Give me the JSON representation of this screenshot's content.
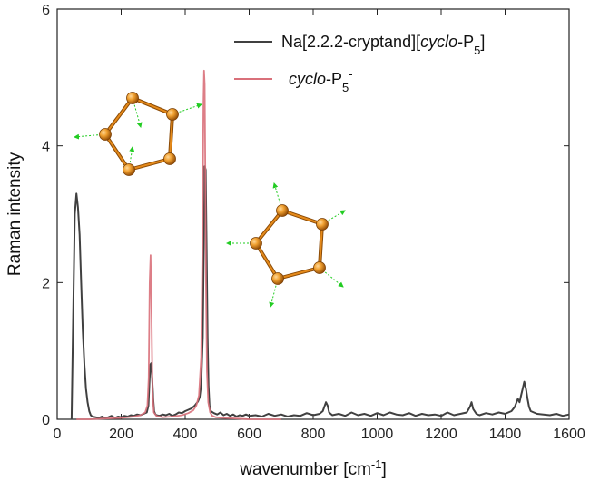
{
  "chart_data": {
    "type": "line",
    "xlabel_main": "wavenumber [cm",
    "xlabel_sup": "-1",
    "xlabel_end": "]",
    "ylabel": "Raman intensity",
    "xlim": [
      0,
      1600
    ],
    "ylim": [
      0,
      6
    ],
    "x_ticks": [
      0,
      200,
      400,
      600,
      800,
      1000,
      1200,
      1400,
      1600
    ],
    "y_ticks": [
      0,
      2,
      4,
      6
    ],
    "grid": false,
    "legend_position": "top-right",
    "series": [
      {
        "name_parts": {
          "a": "Na[2.2.2-cryptand][",
          "b": "cyclo",
          "c": "-P",
          "d": "5",
          "e": "]"
        },
        "color": "#404040",
        "x": [
          45,
          50,
          55,
          60,
          65,
          70,
          75,
          80,
          85,
          90,
          95,
          100,
          105,
          110,
          120,
          130,
          140,
          150,
          160,
          170,
          180,
          190,
          200,
          210,
          220,
          230,
          240,
          250,
          260,
          270,
          280,
          285,
          288,
          291,
          294,
          297,
          300,
          303,
          306,
          310,
          320,
          330,
          340,
          350,
          360,
          370,
          380,
          390,
          400,
          410,
          420,
          430,
          440,
          445,
          450,
          455,
          458,
          461,
          464,
          467,
          470,
          473,
          476,
          480,
          490,
          500,
          510,
          520,
          530,
          540,
          550,
          560,
          570,
          580,
          590,
          600,
          620,
          640,
          660,
          680,
          700,
          720,
          740,
          760,
          780,
          800,
          820,
          830,
          840,
          845,
          850,
          860,
          880,
          900,
          920,
          940,
          960,
          980,
          1000,
          1020,
          1040,
          1060,
          1080,
          1100,
          1120,
          1140,
          1160,
          1180,
          1200,
          1220,
          1240,
          1260,
          1280,
          1290,
          1295,
          1300,
          1310,
          1320,
          1340,
          1360,
          1380,
          1400,
          1420,
          1430,
          1440,
          1445,
          1450,
          1455,
          1460,
          1465,
          1470,
          1475,
          1480,
          1490,
          1500,
          1520,
          1540,
          1560,
          1580,
          1600
        ],
        "y": [
          0.0,
          1.5,
          3.0,
          3.3,
          3.1,
          2.7,
          2.0,
          1.3,
          0.8,
          0.45,
          0.25,
          0.12,
          0.06,
          0.04,
          0.03,
          0.02,
          0.04,
          0.02,
          0.03,
          0.05,
          0.02,
          0.04,
          0.03,
          0.05,
          0.04,
          0.06,
          0.05,
          0.07,
          0.06,
          0.08,
          0.1,
          0.2,
          0.5,
          0.8,
          0.82,
          0.6,
          0.3,
          0.12,
          0.08,
          0.06,
          0.05,
          0.07,
          0.06,
          0.08,
          0.05,
          0.07,
          0.1,
          0.09,
          0.12,
          0.14,
          0.16,
          0.2,
          0.26,
          0.32,
          0.5,
          1.2,
          2.4,
          3.7,
          3.65,
          2.5,
          1.2,
          0.5,
          0.2,
          0.12,
          0.09,
          0.07,
          0.1,
          0.06,
          0.08,
          0.05,
          0.07,
          0.04,
          0.06,
          0.05,
          0.07,
          0.05,
          0.06,
          0.04,
          0.08,
          0.05,
          0.07,
          0.04,
          0.06,
          0.05,
          0.09,
          0.06,
          0.08,
          0.12,
          0.25,
          0.2,
          0.1,
          0.06,
          0.08,
          0.05,
          0.1,
          0.06,
          0.08,
          0.05,
          0.09,
          0.06,
          0.1,
          0.07,
          0.06,
          0.09,
          0.05,
          0.08,
          0.06,
          0.07,
          0.05,
          0.1,
          0.06,
          0.08,
          0.1,
          0.18,
          0.25,
          0.15,
          0.08,
          0.06,
          0.09,
          0.07,
          0.1,
          0.08,
          0.12,
          0.18,
          0.3,
          0.25,
          0.35,
          0.45,
          0.55,
          0.45,
          0.3,
          0.18,
          0.12,
          0.1,
          0.08,
          0.07,
          0.06,
          0.08,
          0.05,
          0.07
        ]
      },
      {
        "name_parts": {
          "a": "",
          "b": "cyclo",
          "c": "-P",
          "d": "5",
          "e": "",
          "sup": "-"
        },
        "color": "#d9707a",
        "x": [
          60,
          100,
          150,
          200,
          240,
          260,
          275,
          282,
          286,
          289,
          292,
          295,
          298,
          302,
          310,
          330,
          360,
          390,
          410,
          425,
          435,
          443,
          450,
          454,
          457,
          459,
          461,
          463,
          465,
          468,
          472,
          478,
          485,
          495,
          520,
          560,
          600,
          700
        ],
        "y": [
          0.0,
          0.0,
          0.01,
          0.02,
          0.04,
          0.06,
          0.1,
          0.2,
          0.6,
          2.0,
          2.4,
          1.5,
          0.4,
          0.1,
          0.05,
          0.03,
          0.04,
          0.06,
          0.09,
          0.13,
          0.2,
          0.35,
          0.9,
          2.5,
          4.6,
          5.1,
          4.9,
          3.6,
          2.0,
          0.7,
          0.25,
          0.1,
          0.05,
          0.03,
          0.02,
          0.01,
          0.0,
          0.0
        ]
      }
    ]
  },
  "molecule_1": {
    "atom_color": "#e88a1e"
  },
  "molecule_2": {
    "atom_color": "#e88a1e"
  }
}
